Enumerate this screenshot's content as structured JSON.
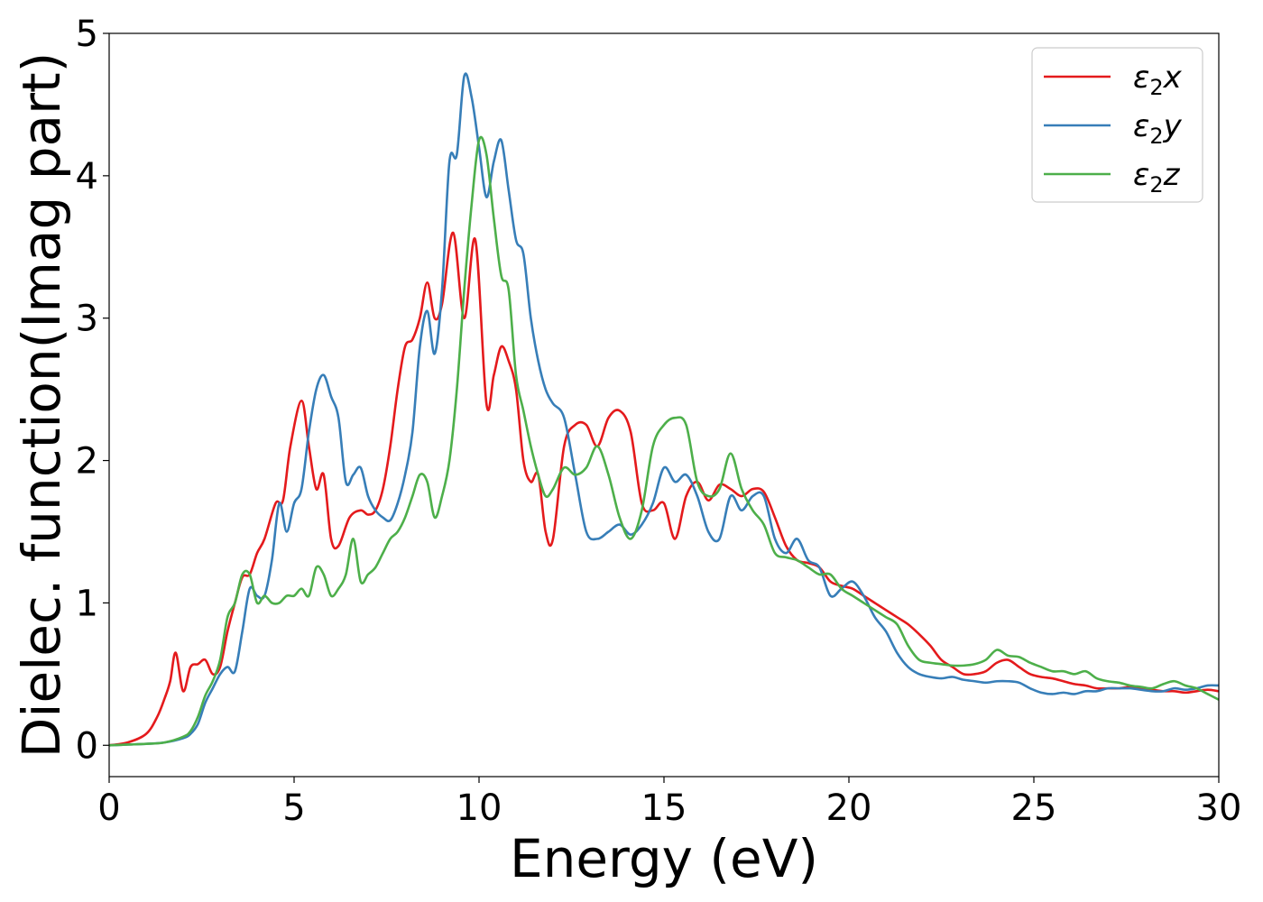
{
  "chart_data": {
    "type": "line",
    "xlabel": "Energy (eV)",
    "ylabel": "Dielec. function(Imag part)",
    "xlim": [
      0,
      30
    ],
    "ylim": [
      -0.22,
      5.0
    ],
    "xticks": [
      0,
      5,
      10,
      15,
      20,
      25,
      30
    ],
    "yticks": [
      0,
      1,
      2,
      3,
      4,
      5
    ],
    "legend_position": "top-right",
    "grid": false,
    "series": [
      {
        "name": "ε2x",
        "name_base": "ε",
        "name_sub": "2",
        "name_var": "x",
        "color": "#e41a1c",
        "x": [
          0,
          0.5,
          1.0,
          1.3,
          1.5,
          1.65,
          1.8,
          2.0,
          2.2,
          2.4,
          2.6,
          2.8,
          3.0,
          3.2,
          3.4,
          3.6,
          3.8,
          4.0,
          4.2,
          4.5,
          4.7,
          4.9,
          5.2,
          5.4,
          5.6,
          5.8,
          6.0,
          6.2,
          6.5,
          6.8,
          7.0,
          7.2,
          7.4,
          7.6,
          7.8,
          8.0,
          8.2,
          8.4,
          8.6,
          8.8,
          9.0,
          9.3,
          9.6,
          9.9,
          10.2,
          10.4,
          10.6,
          10.8,
          11.0,
          11.2,
          11.4,
          11.6,
          11.8,
          12.0,
          12.3,
          12.6,
          12.9,
          13.2,
          13.5,
          13.8,
          14.1,
          14.4,
          14.7,
          15.0,
          15.3,
          15.6,
          15.9,
          16.2,
          16.5,
          16.8,
          17.1,
          17.4,
          17.7,
          18.0,
          18.3,
          18.6,
          18.9,
          19.2,
          19.5,
          19.8,
          20.1,
          20.4,
          20.7,
          21.0,
          21.3,
          21.6,
          21.9,
          22.2,
          22.5,
          22.8,
          23.1,
          23.4,
          23.7,
          24.0,
          24.3,
          24.6,
          24.9,
          25.2,
          25.5,
          25.8,
          26.1,
          26.4,
          26.7,
          27.0,
          27.3,
          27.6,
          27.9,
          28.2,
          28.5,
          28.8,
          29.1,
          29.4,
          29.7,
          30.0
        ],
        "values": [
          0,
          0.02,
          0.08,
          0.2,
          0.33,
          0.45,
          0.65,
          0.38,
          0.55,
          0.57,
          0.6,
          0.5,
          0.55,
          0.8,
          1.0,
          1.18,
          1.2,
          1.35,
          1.45,
          1.7,
          1.72,
          2.1,
          2.42,
          2.1,
          1.8,
          1.9,
          1.45,
          1.4,
          1.6,
          1.65,
          1.62,
          1.65,
          1.8,
          2.1,
          2.5,
          2.8,
          2.85,
          3.0,
          3.25,
          3.0,
          3.1,
          3.6,
          3.0,
          3.55,
          2.4,
          2.6,
          2.8,
          2.7,
          2.5,
          2.0,
          1.85,
          1.9,
          1.5,
          1.45,
          2.1,
          2.25,
          2.25,
          2.1,
          2.3,
          2.35,
          2.2,
          1.7,
          1.65,
          1.7,
          1.45,
          1.75,
          1.85,
          1.72,
          1.83,
          1.8,
          1.75,
          1.8,
          1.78,
          1.6,
          1.4,
          1.3,
          1.28,
          1.25,
          1.15,
          1.12,
          1.1,
          1.05,
          1.0,
          0.95,
          0.9,
          0.85,
          0.78,
          0.7,
          0.6,
          0.55,
          0.5,
          0.5,
          0.52,
          0.58,
          0.6,
          0.55,
          0.5,
          0.48,
          0.47,
          0.45,
          0.43,
          0.42,
          0.4,
          0.4,
          0.4,
          0.41,
          0.4,
          0.39,
          0.38,
          0.38,
          0.37,
          0.38,
          0.39,
          0.38
        ]
      },
      {
        "name": "ε2y",
        "name_base": "ε",
        "name_sub": "2",
        "name_var": "y",
        "color": "#377eb8",
        "x": [
          0,
          0.5,
          1.0,
          1.5,
          2.0,
          2.2,
          2.4,
          2.6,
          2.8,
          3.0,
          3.2,
          3.4,
          3.6,
          3.8,
          4.0,
          4.2,
          4.4,
          4.6,
          4.8,
          5.0,
          5.2,
          5.4,
          5.6,
          5.8,
          6.0,
          6.2,
          6.4,
          6.6,
          6.8,
          7.0,
          7.2,
          7.4,
          7.6,
          7.8,
          8.0,
          8.2,
          8.4,
          8.6,
          8.8,
          9.0,
          9.2,
          9.4,
          9.6,
          9.8,
          10.0,
          10.2,
          10.4,
          10.6,
          10.8,
          11.0,
          11.2,
          11.4,
          11.6,
          11.8,
          12.0,
          12.3,
          12.6,
          12.9,
          13.2,
          13.5,
          13.8,
          14.1,
          14.4,
          14.7,
          15.0,
          15.3,
          15.6,
          15.9,
          16.2,
          16.5,
          16.8,
          17.1,
          17.4,
          17.7,
          18.0,
          18.3,
          18.6,
          18.9,
          19.2,
          19.5,
          19.8,
          20.1,
          20.4,
          20.7,
          21.0,
          21.3,
          21.6,
          21.9,
          22.2,
          22.5,
          22.8,
          23.1,
          23.4,
          23.7,
          24.0,
          24.3,
          24.6,
          24.9,
          25.2,
          25.5,
          25.8,
          26.1,
          26.4,
          26.7,
          27.0,
          27.3,
          27.6,
          27.9,
          28.2,
          28.5,
          28.8,
          29.1,
          29.4,
          29.7,
          30.0
        ],
        "values": [
          0,
          0.005,
          0.01,
          0.02,
          0.05,
          0.08,
          0.15,
          0.3,
          0.4,
          0.5,
          0.55,
          0.52,
          0.8,
          1.1,
          1.05,
          1.05,
          1.3,
          1.7,
          1.5,
          1.7,
          1.8,
          2.2,
          2.5,
          2.6,
          2.45,
          2.3,
          1.85,
          1.9,
          1.95,
          1.75,
          1.65,
          1.6,
          1.58,
          1.7,
          1.9,
          2.2,
          2.8,
          3.05,
          2.75,
          3.2,
          4.1,
          4.15,
          4.7,
          4.55,
          4.2,
          3.85,
          4.1,
          4.25,
          3.9,
          3.55,
          3.45,
          3.0,
          2.7,
          2.5,
          2.4,
          2.3,
          1.9,
          1.5,
          1.45,
          1.5,
          1.55,
          1.48,
          1.55,
          1.7,
          1.95,
          1.85,
          1.9,
          1.75,
          1.5,
          1.45,
          1.75,
          1.65,
          1.75,
          1.75,
          1.45,
          1.35,
          1.45,
          1.3,
          1.25,
          1.05,
          1.1,
          1.15,
          1.05,
          0.9,
          0.8,
          0.65,
          0.55,
          0.5,
          0.48,
          0.47,
          0.48,
          0.46,
          0.45,
          0.44,
          0.45,
          0.45,
          0.44,
          0.4,
          0.37,
          0.36,
          0.37,
          0.36,
          0.38,
          0.38,
          0.4,
          0.4,
          0.4,
          0.39,
          0.38,
          0.38,
          0.4,
          0.39,
          0.4,
          0.42,
          0.42
        ]
      },
      {
        "name": "ε2z",
        "name_base": "ε",
        "name_sub": "2",
        "name_var": "z",
        "color": "#4daf4a",
        "x": [
          0,
          0.5,
          1.0,
          1.5,
          2.0,
          2.2,
          2.4,
          2.6,
          2.8,
          3.0,
          3.2,
          3.4,
          3.6,
          3.8,
          4.0,
          4.2,
          4.4,
          4.6,
          4.8,
          5.0,
          5.2,
          5.4,
          5.6,
          5.8,
          6.0,
          6.2,
          6.4,
          6.6,
          6.8,
          7.0,
          7.2,
          7.4,
          7.6,
          7.8,
          8.0,
          8.2,
          8.4,
          8.6,
          8.8,
          9.0,
          9.2,
          9.4,
          9.6,
          9.8,
          10.0,
          10.2,
          10.4,
          10.6,
          10.8,
          11.0,
          11.2,
          11.4,
          11.6,
          11.8,
          12.0,
          12.3,
          12.6,
          12.9,
          13.2,
          13.5,
          13.8,
          14.1,
          14.4,
          14.7,
          15.0,
          15.3,
          15.6,
          15.9,
          16.2,
          16.5,
          16.8,
          17.1,
          17.4,
          17.7,
          18.0,
          18.3,
          18.6,
          18.9,
          19.2,
          19.5,
          19.8,
          20.1,
          20.4,
          20.7,
          21.0,
          21.3,
          21.6,
          21.9,
          22.2,
          22.5,
          22.8,
          23.1,
          23.4,
          23.7,
          24.0,
          24.3,
          24.6,
          24.9,
          25.2,
          25.5,
          25.8,
          26.1,
          26.4,
          26.7,
          27.0,
          27.3,
          27.6,
          27.9,
          28.2,
          28.5,
          28.8,
          29.1,
          29.4,
          29.7,
          30.0
        ],
        "values": [
          0,
          0.005,
          0.01,
          0.02,
          0.06,
          0.1,
          0.2,
          0.35,
          0.45,
          0.6,
          0.9,
          1.0,
          1.2,
          1.2,
          1.0,
          1.05,
          1.0,
          1.0,
          1.05,
          1.05,
          1.1,
          1.05,
          1.25,
          1.2,
          1.05,
          1.1,
          1.2,
          1.45,
          1.15,
          1.2,
          1.25,
          1.35,
          1.45,
          1.5,
          1.6,
          1.75,
          1.9,
          1.85,
          1.6,
          1.75,
          2.0,
          2.5,
          3.2,
          3.8,
          4.25,
          4.15,
          3.7,
          3.3,
          3.2,
          2.6,
          2.35,
          2.1,
          1.9,
          1.75,
          1.8,
          1.95,
          1.9,
          1.95,
          2.1,
          1.9,
          1.6,
          1.45,
          1.65,
          2.1,
          2.25,
          2.3,
          2.25,
          1.85,
          1.75,
          1.8,
          2.05,
          1.8,
          1.65,
          1.55,
          1.35,
          1.32,
          1.3,
          1.25,
          1.2,
          1.2,
          1.1,
          1.05,
          1.0,
          0.95,
          0.9,
          0.85,
          0.7,
          0.6,
          0.58,
          0.57,
          0.56,
          0.56,
          0.57,
          0.6,
          0.67,
          0.63,
          0.62,
          0.58,
          0.55,
          0.52,
          0.52,
          0.5,
          0.52,
          0.47,
          0.45,
          0.44,
          0.42,
          0.41,
          0.4,
          0.43,
          0.45,
          0.42,
          0.4,
          0.36,
          0.32
        ]
      }
    ]
  }
}
